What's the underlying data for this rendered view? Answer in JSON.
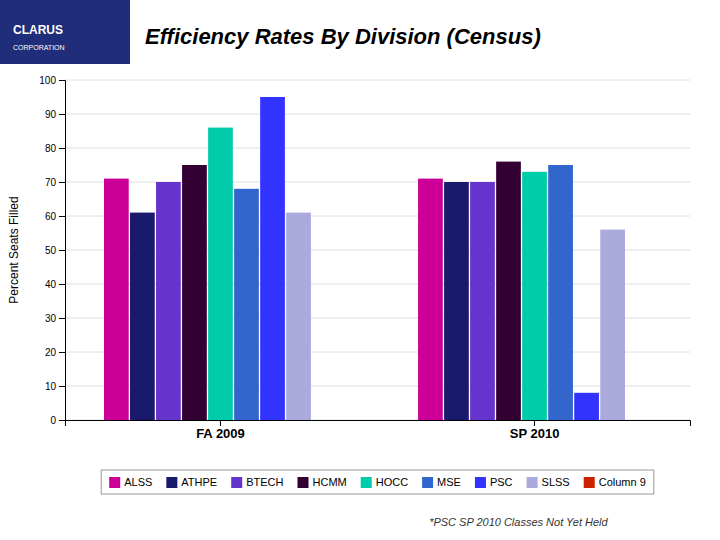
{
  "chart_data": {
    "type": "bar",
    "title": "Efficiency Rates By Division (Census)",
    "ylabel": "Percent Seats Filled",
    "categories": [
      "FA 2009",
      "SP 2010"
    ],
    "series": [
      {
        "name": "ALSS",
        "color": "#CC0099",
        "values": [
          71,
          71
        ]
      },
      {
        "name": "ATHPE",
        "color": "#1A1A6C",
        "values": [
          61,
          70
        ]
      },
      {
        "name": "BTECH",
        "color": "#6633CC",
        "values": [
          70,
          70
        ]
      },
      {
        "name": "HCMM",
        "color": "#330033",
        "values": [
          75,
          76
        ]
      },
      {
        "name": "HOCC",
        "color": "#00CCAA",
        "values": [
          86,
          73
        ]
      },
      {
        "name": "MSE",
        "color": "#3366CC",
        "values": [
          68,
          75
        ]
      },
      {
        "name": "PSC",
        "color": "#3333FF",
        "values": [
          95,
          8
        ]
      },
      {
        "name": "SLSS",
        "color": "#AAAADD",
        "values": [
          61,
          56
        ]
      },
      {
        "name": "Column 9",
        "color": "#CC2200",
        "values": [
          0,
          0
        ]
      }
    ],
    "ylim": [
      0,
      100
    ],
    "yticks": [
      0,
      10,
      20,
      30,
      40,
      50,
      60,
      70,
      80,
      90,
      100
    ],
    "grid": true,
    "legend": "bottom",
    "annotations": [
      "*PSC SP 2010 Classes Not Yet Held",
      "CLARUS",
      "CORPORATION"
    ]
  }
}
